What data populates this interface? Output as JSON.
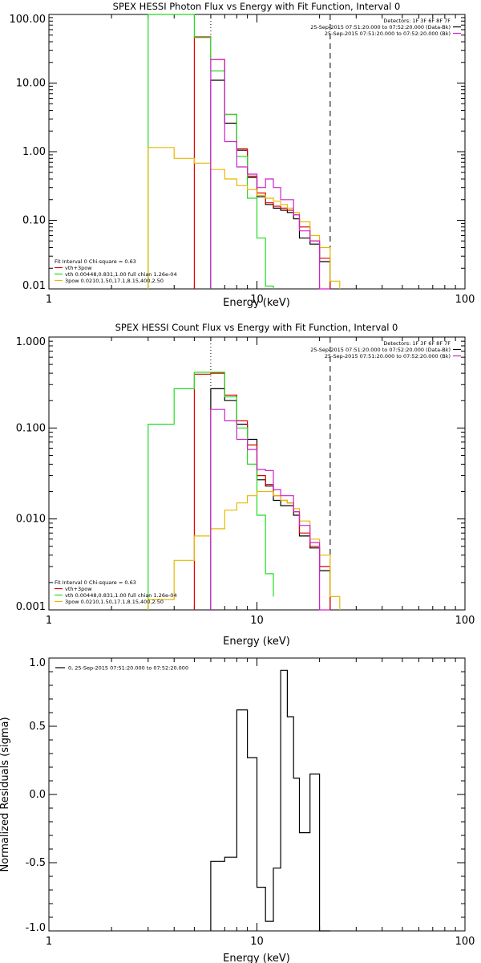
{
  "colors": {
    "black": "#000000",
    "red": "#e00000",
    "green": "#22dd22",
    "yellow": "#e8b800",
    "magenta": "#cc22cc"
  },
  "chart_data": [
    {
      "type": "line",
      "title": "SPEX HESSI Photon Flux vs Energy with Fit Function, Interval 0",
      "xlabel": "Energy (keV)",
      "ylabel": "",
      "xscale": "log",
      "yscale": "log",
      "xlim": [
        1,
        100
      ],
      "ylim": [
        0.01,
        100
      ],
      "xticks": [
        "1",
        "10",
        "100"
      ],
      "yticks": [
        "0.01",
        "0.10",
        "1.00",
        "10.00",
        "100.00"
      ],
      "ytick_values": [
        0.01,
        0.1,
        1,
        10,
        100
      ],
      "vlines": [
        {
          "x": 6.0,
          "style": "dotted",
          "color": "#000000"
        },
        {
          "x": 22.5,
          "style": "dashed",
          "color": "#000000"
        }
      ],
      "legend_topright": [
        {
          "text": "Detectors: 1F 3F 6F 8F 7F",
          "color": "#000000"
        },
        {
          "text": "25-Sep-2015 07:51:20.000 to 07:52:20.000 (Data-Bk)",
          "color": "#000000"
        },
        {
          "text": "25-Sep-2015 07:51:20.000 to 07:52:20.000 (Bk)",
          "color": "#cc22cc"
        }
      ],
      "legend_bottomleft": [
        {
          "text": "Fit Interval 0   Chi-square = 0.63",
          "color": "#000000"
        },
        {
          "text": "vth+3pow",
          "color": "#e00000"
        },
        {
          "text": "vth 0.00448,0.831,1.00  full chian 1.26e-04",
          "color": "#22dd22"
        },
        {
          "text": "3pow 0.0210,1.50,17.1,8.15,400,2.50",
          "color": "#e8b800"
        }
      ],
      "series": [
        {
          "color": "#000000",
          "edges": [
            6,
            7,
            8,
            9,
            10,
            11,
            12,
            13,
            14,
            15,
            16,
            18,
            20,
            22.5
          ],
          "values": [
            11,
            2.6,
            1.05,
            0.42,
            0.22,
            0.17,
            0.15,
            0.14,
            0.13,
            0.105,
            0.055,
            0.045,
            0.025
          ]
        },
        {
          "color": "#e00000",
          "edges": [
            5,
            6,
            7,
            8,
            9,
            10,
            11,
            12,
            13,
            14,
            15,
            16,
            18,
            20,
            22.5
          ],
          "values": [
            47,
            22,
            3.5,
            1.1,
            0.44,
            0.25,
            0.18,
            0.16,
            0.15,
            0.14,
            0.12,
            0.08,
            0.05,
            0.028
          ]
        },
        {
          "color": "#22dd22",
          "edges": [
            3,
            4,
            5,
            6,
            7,
            8,
            9,
            10,
            11,
            12
          ],
          "values": [
            150,
            150,
            46,
            15,
            3.5,
            0.85,
            0.21,
            0.055,
            0.011
          ]
        },
        {
          "color": "#e8b800",
          "edges": [
            3,
            4,
            5,
            6,
            7,
            8,
            9,
            10,
            11,
            12,
            13,
            14,
            15,
            16,
            18,
            20,
            22.5,
            25
          ],
          "values": [
            1.15,
            0.8,
            0.68,
            0.55,
            0.4,
            0.32,
            0.28,
            0.23,
            0.21,
            0.19,
            0.17,
            0.15,
            0.13,
            0.095,
            0.06,
            0.04,
            0.013
          ]
        },
        {
          "color": "#cc22cc",
          "edges": [
            6,
            7,
            8,
            9,
            10,
            11,
            12,
            13,
            14,
            15,
            16,
            18,
            20,
            22.5
          ],
          "values": [
            22,
            1.4,
            0.6,
            0.47,
            0.3,
            0.4,
            0.3,
            0.2,
            0.2,
            0.12,
            0.07,
            0.05,
            0.005
          ]
        }
      ]
    },
    {
      "type": "line",
      "title": "SPEX HESSI Count Flux vs Energy with Fit Function, Interval 0",
      "xlabel": "Energy (keV)",
      "ylabel": "",
      "xscale": "log",
      "yscale": "log",
      "xlim": [
        1,
        100
      ],
      "ylim": [
        0.001,
        1
      ],
      "xticks": [
        "1",
        "10",
        "100"
      ],
      "yticks": [
        "0.001",
        "0.010",
        "0.100",
        "1.000"
      ],
      "ytick_values": [
        0.001,
        0.01,
        0.1,
        1
      ],
      "vlines": [
        {
          "x": 6.0,
          "style": "dotted",
          "color": "#000000"
        },
        {
          "x": 22.5,
          "style": "dashed",
          "color": "#000000"
        }
      ],
      "legend_topright": [
        {
          "text": "Detectors: 1F 3F 6F 8F 7F",
          "color": "#000000"
        },
        {
          "text": "25-Sep-2015 07:51:20.000 to 07:52:20.000 (Data-Bk)",
          "color": "#000000"
        },
        {
          "text": "25-Sep-2015 07:51:20.000 to 07:52:20.000 (Bk)",
          "color": "#cc22cc"
        }
      ],
      "legend_bottomleft": [
        {
          "text": "Fit Interval 0   Chi-square = 0.63",
          "color": "#000000"
        },
        {
          "text": "vth+3pow",
          "color": "#e00000"
        },
        {
          "text": "vth 0.00448,0.831,1.00  full chian 1.26e-04",
          "color": "#22dd22"
        },
        {
          "text": "3pow 0.0210,1.50,17.1,8.15,400,2.50",
          "color": "#e8b800"
        }
      ],
      "series": [
        {
          "color": "#000000",
          "edges": [
            6,
            7,
            8,
            9,
            10,
            11,
            12,
            13,
            14,
            15,
            16,
            18,
            20,
            22.5
          ],
          "values": [
            0.27,
            0.2,
            0.11,
            0.075,
            0.027,
            0.023,
            0.016,
            0.014,
            0.014,
            0.011,
            0.0065,
            0.0048,
            0.0027
          ]
        },
        {
          "color": "#e00000",
          "edges": [
            5,
            6,
            7,
            8,
            9,
            10,
            11,
            12,
            13,
            14,
            15,
            16,
            18,
            20,
            22.5
          ],
          "values": [
            0.39,
            0.4,
            0.23,
            0.12,
            0.065,
            0.03,
            0.024,
            0.018,
            0.016,
            0.015,
            0.012,
            0.007,
            0.005,
            0.003
          ]
        },
        {
          "color": "#22dd22",
          "edges": [
            3,
            4,
            5,
            6,
            7,
            8,
            9,
            10,
            11,
            12
          ],
          "values": [
            0.11,
            0.27,
            0.41,
            0.41,
            0.22,
            0.1,
            0.04,
            0.011,
            0.0025,
            0.0014
          ]
        },
        {
          "color": "#e8b800",
          "edges": [
            3,
            4,
            5,
            6,
            7,
            8,
            9,
            10,
            11,
            12,
            13,
            14,
            15,
            16,
            18,
            20,
            22.5,
            25
          ],
          "values": [
            0.0013,
            0.0035,
            0.0065,
            0.0078,
            0.0125,
            0.015,
            0.018,
            0.02,
            0.02,
            0.018,
            0.016,
            0.015,
            0.013,
            0.0095,
            0.006,
            0.004,
            0.0014
          ]
        },
        {
          "color": "#cc22cc",
          "edges": [
            6,
            7,
            8,
            9,
            10,
            11,
            12,
            13,
            14,
            15,
            16,
            18,
            20,
            22.5
          ],
          "values": [
            0.16,
            0.12,
            0.075,
            0.058,
            0.035,
            0.034,
            0.021,
            0.018,
            0.018,
            0.012,
            0.0085,
            0.0055,
            0.0008
          ]
        }
      ]
    },
    {
      "type": "line",
      "title": "",
      "xlabel": "Energy (keV)",
      "ylabel": "Normalized Residuals (sigma)",
      "xscale": "log",
      "yscale": "linear",
      "xlim": [
        1,
        100
      ],
      "ylim": [
        -1,
        1
      ],
      "xticks": [
        "1",
        "10",
        "100"
      ],
      "yticks": [
        "-1.0",
        "-0.5",
        "0.0",
        "0.5",
        "1.0"
      ],
      "ytick_values": [
        -1,
        -0.5,
        0,
        0.5,
        1
      ],
      "legend": "0, 25-Sep-2015 07:51:20.000 to 07:52:20.000",
      "series": [
        {
          "color": "#000000",
          "edges": [
            6,
            7,
            8,
            9,
            10,
            11,
            12,
            13,
            14,
            15,
            16,
            18,
            20,
            22.5
          ],
          "values": [
            -0.49,
            -0.46,
            0.62,
            0.27,
            -0.68,
            -0.93,
            -0.54,
            0.91,
            0.57,
            0.12,
            -0.28,
            0.15,
            -1.0
          ]
        }
      ]
    }
  ]
}
